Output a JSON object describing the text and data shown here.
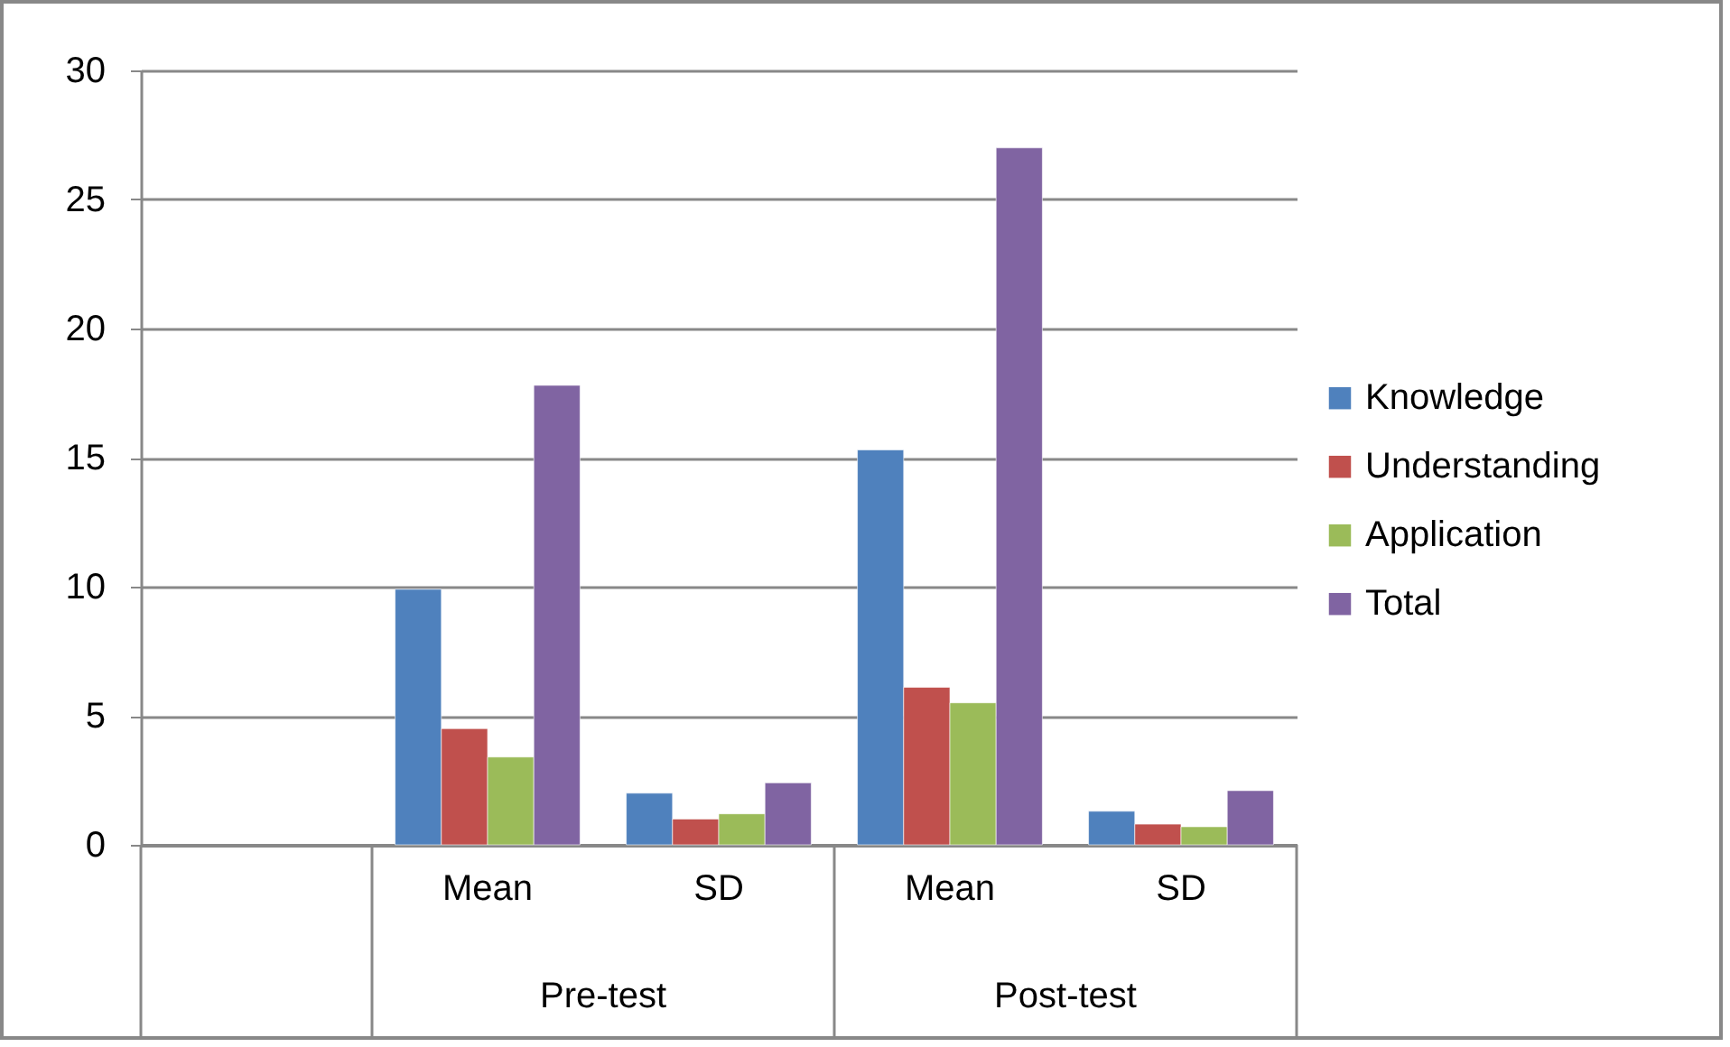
{
  "chart_data": {
    "type": "bar",
    "categories": [
      null,
      "Mean",
      "SD",
      "Mean",
      "SD"
    ],
    "series": [
      {
        "name": "Knowledge",
        "color": "#4f81bd",
        "values": [
          null,
          9.9,
          2.0,
          15.3,
          1.3
        ]
      },
      {
        "name": "Understanding",
        "color": "#c0504d",
        "values": [
          null,
          4.5,
          1.0,
          6.1,
          0.8
        ]
      },
      {
        "name": "Application",
        "color": "#9bbb59",
        "values": [
          null,
          3.4,
          1.2,
          5.5,
          0.7
        ]
      },
      {
        "name": "Total",
        "color": "#8064a2",
        "values": [
          null,
          17.8,
          2.4,
          27.0,
          2.1
        ]
      }
    ],
    "ylim": [
      0,
      30
    ],
    "yticks": [
      0,
      5,
      10,
      15,
      20,
      25,
      30
    ],
    "grid": "y",
    "legend": "right",
    "annotations": [
      "Pre-test",
      "Post-test"
    ]
  }
}
